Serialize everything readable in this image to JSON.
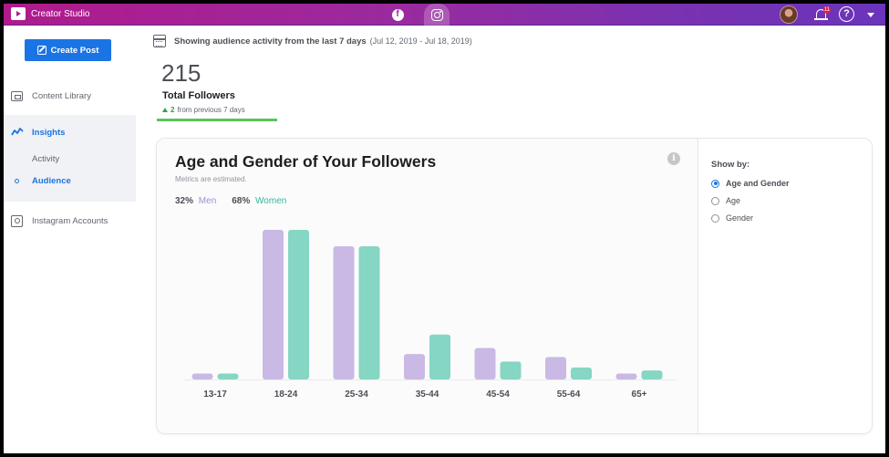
{
  "app": {
    "title": "Creator Studio"
  },
  "topbar": {
    "notifications_badge": "11"
  },
  "sidebar": {
    "create_post_label": "Create Post",
    "items": [
      {
        "label": "Content Library",
        "icon": "content-library-icon"
      },
      {
        "label": "Insights",
        "icon": "insights-icon",
        "active": true
      },
      {
        "label": "Activity"
      },
      {
        "label": "Audience",
        "active": true
      },
      {
        "label": "Instagram Accounts",
        "icon": "instagram-accounts-icon"
      }
    ]
  },
  "date_range": {
    "lead": "Showing audience activity from the last 7 days",
    "range": "(Jul 12, 2019 - Jul 18, 2019)"
  },
  "followers": {
    "value": "215",
    "label": "Total Followers",
    "change_value": "2",
    "change_text": "from previous 7 days"
  },
  "card": {
    "title": "Age and Gender of Your Followers",
    "note": "Metrics are estimated.",
    "legend": [
      {
        "pct": "32%",
        "name": "Men",
        "color": "#c9b9e4"
      },
      {
        "pct": "68%",
        "name": "Women",
        "color": "#85d6c3"
      }
    ]
  },
  "show_by": {
    "title": "Show by:",
    "options": [
      {
        "label": "Age and Gender",
        "selected": true
      },
      {
        "label": "Age",
        "selected": false
      },
      {
        "label": "Gender",
        "selected": false
      }
    ]
  },
  "chart_data": {
    "type": "bar",
    "categories": [
      "13-17",
      "18-24",
      "25-34",
      "35-44",
      "45-54",
      "55-64",
      "65+"
    ],
    "series": [
      {
        "name": "Men",
        "color": "#c9b9e4",
        "values": [
          4,
          100,
          89,
          17,
          21,
          15,
          4
        ]
      },
      {
        "name": "Women",
        "color": "#85d6c3",
        "values": [
          4,
          100,
          89,
          30,
          12,
          8,
          6
        ]
      }
    ],
    "ylim": [
      0,
      100
    ],
    "grid": false,
    "legend": "top-left"
  }
}
